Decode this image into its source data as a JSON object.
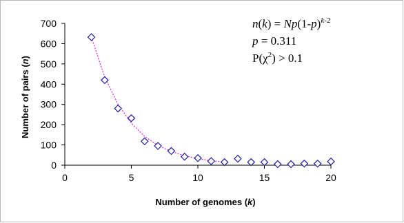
{
  "chart_data": {
    "type": "scatter",
    "title": "",
    "xlabel": "Number of genomes",
    "xlabel_var": "k",
    "ylabel": "Number of pairs",
    "ylabel_var": "n",
    "xlim": [
      0,
      20
    ],
    "ylim": [
      0,
      700
    ],
    "xticks": [
      0,
      5,
      10,
      15,
      20
    ],
    "yticks": [
      0,
      100,
      200,
      300,
      400,
      500,
      600,
      700
    ],
    "grid": false,
    "series": [
      {
        "marker": "diamond-open",
        "color": "#1f1f9c",
        "x": [
          2,
          3,
          4,
          5,
          6,
          7,
          8,
          9,
          10,
          11,
          12,
          13,
          14,
          15,
          16,
          17,
          18,
          19,
          20
        ],
        "y": [
          632,
          420,
          280,
          232,
          118,
          95,
          70,
          42,
          35,
          20,
          15,
          32,
          15,
          15,
          5,
          5,
          8,
          8,
          18
        ]
      },
      {
        "style": "dotted",
        "color": "#e020e0",
        "x": [
          2,
          3,
          4,
          5,
          6,
          7,
          8,
          9,
          10,
          11,
          12
        ],
        "y": [
          632,
          435,
          300,
          207,
          142,
          98,
          68,
          47,
          32,
          22,
          15
        ]
      }
    ],
    "annotation": {
      "line1": {
        "n": "n",
        "k": "k",
        "eq": " = ",
        "N": "N",
        "p1": "p",
        "paren": "(1-",
        "p2": "p",
        "close": ")",
        "exp_k": "k",
        "exp_rest": "-2"
      },
      "line2": {
        "p": "p",
        "rest": " = 0.311"
      },
      "line3": {
        "P": "P(",
        "chi": "χ",
        "sq": "2",
        "rest": ") > 0.1"
      }
    }
  }
}
